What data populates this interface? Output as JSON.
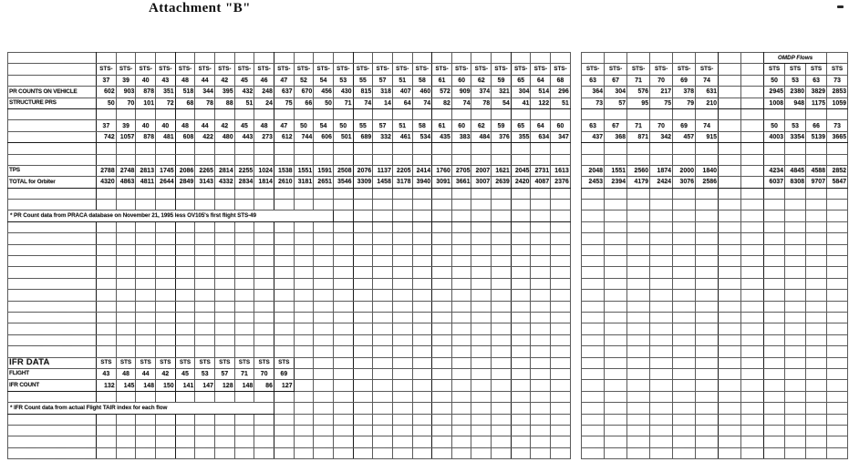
{
  "page": {
    "title": "Attachment \"B\""
  },
  "left_table": {
    "sts_prefix": "STS-",
    "flights": [
      "37",
      "39",
      "40",
      "43",
      "48",
      "44",
      "42",
      "45",
      "46",
      "47",
      "52",
      "54",
      "53",
      "55",
      "57",
      "51",
      "58",
      "61",
      "60",
      "62",
      "59",
      "65",
      "64",
      "68"
    ],
    "pr_counts_label": "PR COUNTS ON VEHICLE",
    "pr_counts": [
      "602",
      "903",
      "878",
      "351",
      "518",
      "344",
      "395",
      "432",
      "248",
      "637",
      "670",
      "456",
      "430",
      "815",
      "318",
      "407",
      "460",
      "572",
      "909",
      "374",
      "321",
      "304",
      "514",
      "296"
    ],
    "structure_label": "STRUCTURE PRS",
    "structure_prs": [
      "50",
      "70",
      "101",
      "72",
      "68",
      "78",
      "88",
      "51",
      "24",
      "75",
      "66",
      "50",
      "71",
      "74",
      "14",
      "64",
      "74",
      "82",
      "74",
      "78",
      "54",
      "41",
      "122",
      "51"
    ],
    "flights_repeat": [
      "37",
      "39",
      "40",
      "40",
      "48",
      "44",
      "42",
      "45",
      "48",
      "47",
      "50",
      "54",
      "50",
      "55",
      "57",
      "51",
      "58",
      "61",
      "60",
      "62",
      "59",
      "65",
      "64",
      "60"
    ],
    "counts_repeat": [
      "742",
      "1057",
      "878",
      "481",
      "608",
      "422",
      "480",
      "443",
      "273",
      "612",
      "744",
      "606",
      "501",
      "689",
      "332",
      "461",
      "534",
      "435",
      "383",
      "484",
      "376",
      "355",
      "634",
      "347"
    ],
    "tps_label": "TPS",
    "tps": [
      "2788",
      "2748",
      "2813",
      "1745",
      "2086",
      "2265",
      "2814",
      "2255",
      "1024",
      "1538",
      "1551",
      "1591",
      "2508",
      "2076",
      "1137",
      "2205",
      "2414",
      "1760",
      "2705",
      "2007",
      "1621",
      "2045",
      "2731",
      "1613"
    ],
    "total_label": "TOTAL for Orbiter",
    "total": [
      "4320",
      "4863",
      "4811",
      "2644",
      "2849",
      "3143",
      "4332",
      "2834",
      "1814",
      "2610",
      "3181",
      "2651",
      "3546",
      "3309",
      "1458",
      "3178",
      "3940",
      "3091",
      "3661",
      "3007",
      "2639",
      "2420",
      "4087",
      "2376"
    ],
    "note": "* PR Count data from PRACA database on November 21, 1995 less OV105's first flight STS-49"
  },
  "right_table": {
    "sts_prefix": "STS-",
    "sts_plain": "STS",
    "omdp_header": "OMDP Flows",
    "flights": [
      "63",
      "67",
      "71",
      "70",
      "69",
      "74"
    ],
    "pr_counts": [
      "364",
      "304",
      "576",
      "217",
      "378",
      "631"
    ],
    "structure_prs": [
      "73",
      "57",
      "95",
      "75",
      "79",
      "210"
    ],
    "flights_repeat": [
      "63",
      "67",
      "71",
      "70",
      "69",
      "74"
    ],
    "counts_repeat": [
      "437",
      "368",
      "871",
      "342",
      "457",
      "915"
    ],
    "tps": [
      "2048",
      "1551",
      "2560",
      "1874",
      "2000",
      "1840"
    ],
    "total": [
      "2453",
      "2394",
      "4179",
      "2424",
      "3076",
      "2586"
    ],
    "omdp_flights": [
      "50",
      "53",
      "63",
      "73"
    ],
    "omdp_row1": [
      "2945",
      "2380",
      "3829",
      "2853"
    ],
    "omdp_row2": [
      "1008",
      "948",
      "1175",
      "1059"
    ],
    "omdp_flights_repeat": [
      "50",
      "53",
      "66",
      "73"
    ],
    "omdp_counts_repeat": [
      "4003",
      "3354",
      "5139",
      "3665"
    ],
    "omdp_tps": [
      "4234",
      "4845",
      "4588",
      "2852"
    ],
    "omdp_total": [
      "6037",
      "8308",
      "9707",
      "5847"
    ]
  },
  "ifr": {
    "header": "IFR DATA",
    "sts": "STS",
    "flight_label": "FLIGHT",
    "flights": [
      "43",
      "48",
      "44",
      "42",
      "45",
      "53",
      "57",
      "71",
      "70",
      "69"
    ],
    "count_label": "IFR COUNT",
    "counts": [
      "132",
      "145",
      "148",
      "150",
      "141",
      "147",
      "128",
      "148",
      "86",
      "127"
    ],
    "note": "* IFR Count data from actual Flight TAIR index for each flow"
  },
  "colors": {
    "ink": "#1c1c1c",
    "paper": "#ffffff"
  }
}
